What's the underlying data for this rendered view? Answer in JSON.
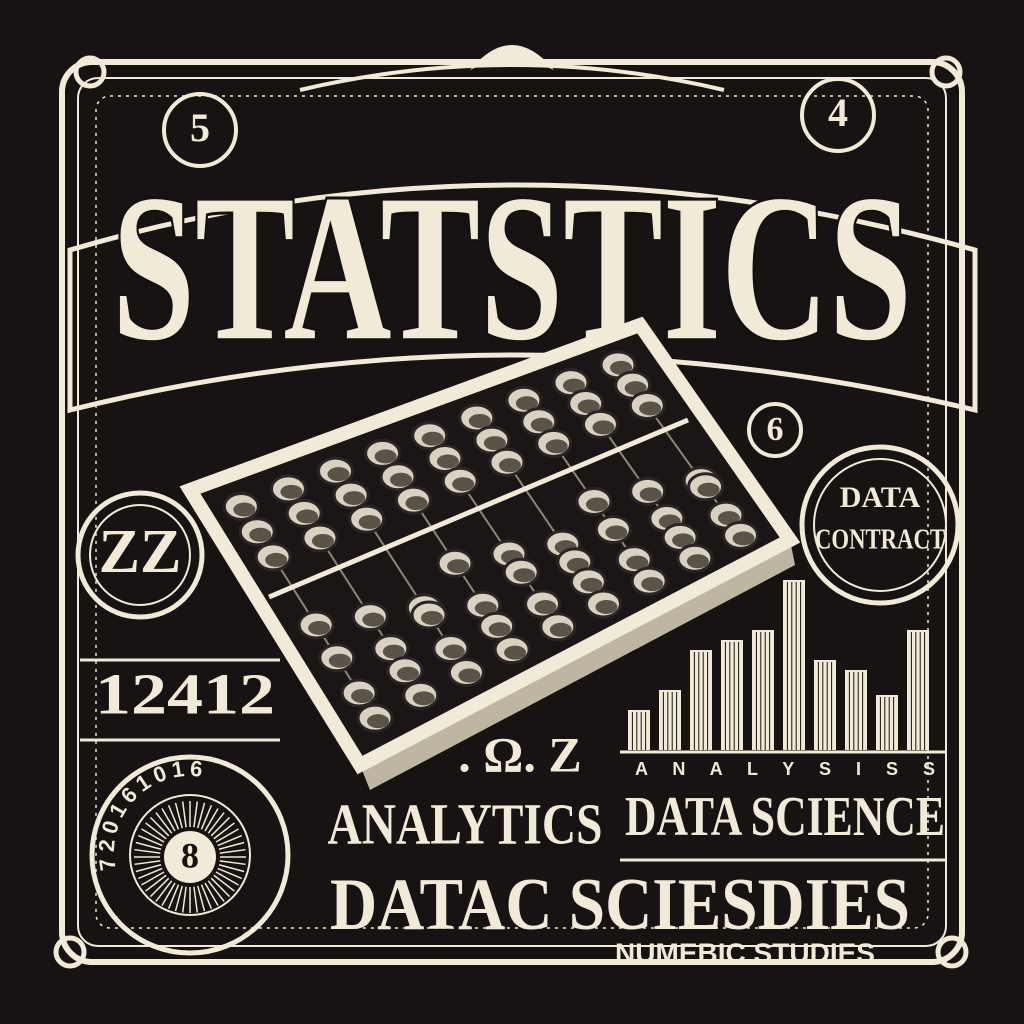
{
  "poster": {
    "title": "STATSTICS",
    "corner_numbers": [
      "5",
      "4",
      "6"
    ],
    "badge_left": "ZZ",
    "badge_right": [
      "DATA",
      "CONTRACT"
    ],
    "number_row": "12412",
    "dial_number": "8",
    "dial_digits": "7 2 0 1 6 1 0 1 6",
    "scribble": ". Ω. Z",
    "analysis_label": "A N A L Y S I S S",
    "analytics": "ANALYTICS",
    "data_science": "DATA SCIENCE",
    "garbled": "DATAC SCIESDIES",
    "subtitle": "NUMEBIC STUDIES"
  }
}
